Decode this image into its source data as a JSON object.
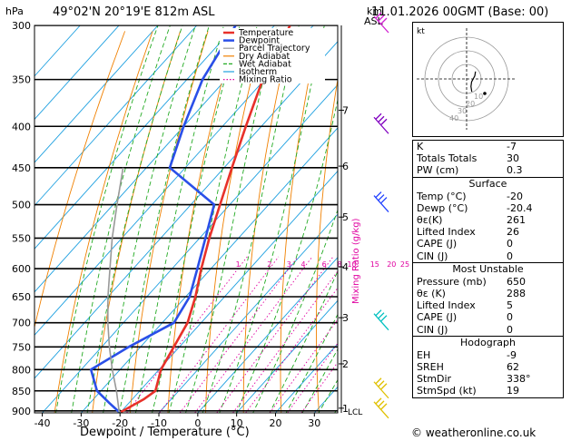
{
  "header": {
    "location": "49°02'N  20°19'E  812m  ASL",
    "datetime": "11.01.2026  00GMT  (Base: 00)"
  },
  "axes": {
    "left_unit": "hPa",
    "km_unit": "km",
    "km_unit2": "ASL",
    "xlabel": "Dewpoint / Temperature (°C)",
    "mixing_label": "Mixing Ratio (g/kg)"
  },
  "legend": [
    {
      "label": "Temperature",
      "color": "#e8312a"
    },
    {
      "label": "Dewpoint",
      "color": "#2a4fe8"
    },
    {
      "label": "Parcel Trajectory",
      "color": "#999999"
    },
    {
      "label": "Dry Adiabat",
      "color": "#f08000"
    },
    {
      "label": "Wet Adiabat",
      "color": "#22aa22"
    },
    {
      "label": "Isotherm",
      "color": "#1ea0e0"
    },
    {
      "label": "Mixing Ratio",
      "color": "#e000a0"
    }
  ],
  "chart_data": {
    "type": "skew-t",
    "pressure_levels": [
      300,
      350,
      400,
      450,
      500,
      550,
      600,
      650,
      700,
      750,
      800,
      850,
      900
    ],
    "temp_ticks": [
      -40,
      -30,
      -20,
      -10,
      0,
      10,
      20,
      30
    ],
    "xlim": [
      -42,
      36
    ],
    "ylim": [
      905,
      300
    ],
    "km_ticks": [
      {
        "label": "1",
        "p": 893
      },
      {
        "label": "2",
        "p": 787
      },
      {
        "label": "3",
        "p": 690
      },
      {
        "label": "4",
        "p": 597
      },
      {
        "label": "5",
        "p": 518
      },
      {
        "label": "6",
        "p": 448
      },
      {
        "label": "7",
        "p": 382
      }
    ],
    "lcl_label": "LCL",
    "lcl_p": 903,
    "mixing_ratio_labels": [
      "1",
      "2",
      "3",
      "4",
      "6",
      "8",
      "10",
      "15",
      "20",
      "25"
    ],
    "mixing_ratio_values": [
      1,
      2,
      3,
      4,
      6,
      8,
      10,
      15,
      20,
      25
    ],
    "series": [
      {
        "name": "Temperature",
        "color": "#e8312a",
        "points": [
          [
            903,
            -20
          ],
          [
            870,
            -17
          ],
          [
            850,
            -16
          ],
          [
            800,
            -19.5
          ],
          [
            700,
            -23.5
          ],
          [
            650,
            -27.5
          ],
          [
            600,
            -32.5
          ],
          [
            550,
            -37.5
          ],
          [
            500,
            -42.5
          ],
          [
            450,
            -48
          ],
          [
            400,
            -54
          ],
          [
            350,
            -60.5
          ],
          [
            300,
            -66
          ]
        ]
      },
      {
        "name": "Dewpoint",
        "color": "#2a4fe8",
        "points": [
          [
            903,
            -20.4
          ],
          [
            880,
            -25
          ],
          [
            850,
            -31
          ],
          [
            800,
            -37.5
          ],
          [
            750,
            -33
          ],
          [
            700,
            -27
          ],
          [
            650,
            -29
          ],
          [
            600,
            -33.5
          ],
          [
            550,
            -38.5
          ],
          [
            500,
            -44
          ],
          [
            450,
            -64
          ],
          [
            400,
            -70
          ],
          [
            350,
            -76
          ],
          [
            300,
            -80
          ]
        ]
      },
      {
        "name": "Parcel Trajectory",
        "color": "#999999",
        "points": [
          [
            903,
            -20.4
          ],
          [
            850,
            -26
          ],
          [
            800,
            -32
          ],
          [
            750,
            -38
          ],
          [
            700,
            -44
          ],
          [
            650,
            -50
          ],
          [
            600,
            -56
          ],
          [
            550,
            -62.5
          ],
          [
            500,
            -69
          ],
          [
            450,
            -76
          ]
        ]
      }
    ]
  },
  "hodograph": {
    "unit": "kt",
    "rings": [
      "10",
      "20",
      "30",
      "40"
    ],
    "wind_points": [
      [
        338,
        19
      ],
      [
        330,
        12
      ],
      [
        300,
        8
      ],
      [
        250,
        12
      ],
      [
        230,
        16
      ]
    ]
  },
  "wind_barbs": [
    {
      "p": 300,
      "color": "#d020d0"
    },
    {
      "p": 400,
      "color": "#8000c0"
    },
    {
      "p": 500,
      "color": "#2040ff"
    },
    {
      "p": 700,
      "color": "#00c0c0"
    },
    {
      "p": 850,
      "color": "#e0c000"
    },
    {
      "p": 900,
      "color": "#e0c000"
    }
  ],
  "indices": [
    {
      "label": "K",
      "value": "-7"
    },
    {
      "label": "Totals Totals",
      "value": "30"
    },
    {
      "label": "PW (cm)",
      "value": "0.3"
    }
  ],
  "surface": {
    "title": "Surface",
    "rows": [
      {
        "label": "Temp (°C)",
        "value": "-20"
      },
      {
        "label": "Dewp (°C)",
        "value": "-20.4"
      },
      {
        "label": "θε(K)",
        "value": "261"
      },
      {
        "label": "Lifted Index",
        "value": "26"
      },
      {
        "label": "CAPE (J)",
        "value": "0"
      },
      {
        "label": "CIN (J)",
        "value": "0"
      }
    ]
  },
  "most_unstable": {
    "title": "Most Unstable",
    "rows": [
      {
        "label": "Pressure (mb)",
        "value": "650"
      },
      {
        "label": "θε (K)",
        "value": "288"
      },
      {
        "label": "Lifted Index",
        "value": "5"
      },
      {
        "label": "CAPE (J)",
        "value": "0"
      },
      {
        "label": "CIN (J)",
        "value": "0"
      }
    ]
  },
  "hodograph_table": {
    "title": "Hodograph",
    "rows": [
      {
        "label": "EH",
        "value": "-9"
      },
      {
        "label": "SREH",
        "value": "62"
      },
      {
        "label": "StmDir",
        "value": "338°"
      },
      {
        "label": "StmSpd (kt)",
        "value": "19"
      }
    ]
  },
  "footer": "© weatheronline.co.uk"
}
